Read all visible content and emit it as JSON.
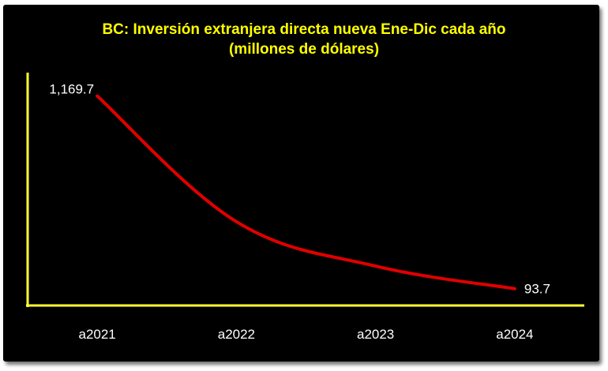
{
  "chart_data": {
    "type": "line",
    "title": "BC: Inversión extranjera directa nueva Ene-Dic cada año",
    "subtitle": "(millones de dólares)",
    "categories": [
      "a2021",
      "a2022",
      "a2023",
      "a2024"
    ],
    "series": [
      {
        "values": [
          1169.7,
          468.0,
          220.0,
          93.7
        ],
        "data_labels": [
          "1,169.7",
          null,
          null,
          "93.7"
        ]
      }
    ],
    "ylim": [
      0,
      1300
    ],
    "grid": false,
    "legend": "none",
    "line_style": "smooth",
    "colors": {
      "line": "#e00000",
      "axes": "#ffff33",
      "title": "#ffff00",
      "text": "#ffffff",
      "background": "#000000"
    }
  }
}
